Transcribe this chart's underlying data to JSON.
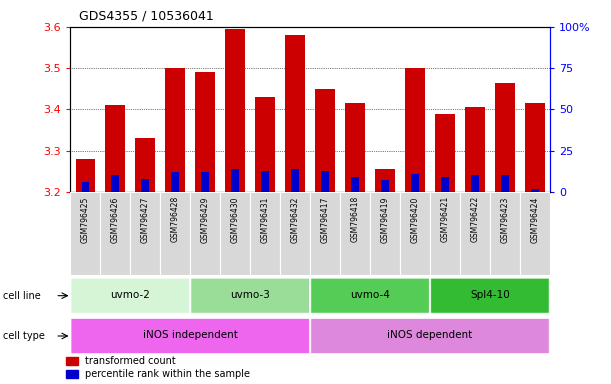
{
  "title": "GDS4355 / 10536041",
  "samples": [
    "GSM796425",
    "GSM796426",
    "GSM796427",
    "GSM796428",
    "GSM796429",
    "GSM796430",
    "GSM796431",
    "GSM796432",
    "GSM796417",
    "GSM796418",
    "GSM796419",
    "GSM796420",
    "GSM796421",
    "GSM796422",
    "GSM796423",
    "GSM796424"
  ],
  "red_values": [
    3.28,
    3.41,
    3.33,
    3.5,
    3.49,
    3.595,
    3.43,
    3.58,
    3.45,
    3.415,
    3.255,
    3.5,
    3.39,
    3.405,
    3.465,
    3.415
  ],
  "blue_percentiles": [
    6,
    10,
    8,
    12,
    12,
    14,
    13,
    14,
    13,
    9,
    7,
    11,
    9,
    10,
    10,
    2
  ],
  "cell_lines": [
    {
      "label": "uvmo-2",
      "start": 0,
      "end": 4,
      "color": "#d6f5d6"
    },
    {
      "label": "uvmo-3",
      "start": 4,
      "end": 8,
      "color": "#99dd99"
    },
    {
      "label": "uvmo-4",
      "start": 8,
      "end": 12,
      "color": "#55cc55"
    },
    {
      "label": "Spl4-10",
      "start": 12,
      "end": 16,
      "color": "#33bb33"
    }
  ],
  "cell_types": [
    {
      "label": "iNOS independent",
      "start": 0,
      "end": 8,
      "color": "#ee66ee"
    },
    {
      "label": "iNOS dependent",
      "start": 8,
      "end": 16,
      "color": "#dd88dd"
    }
  ],
  "ylim_left": [
    3.2,
    3.6
  ],
  "ylim_right": [
    0,
    100
  ],
  "yticks_left": [
    3.2,
    3.3,
    3.4,
    3.5,
    3.6
  ],
  "yticks_right": [
    0,
    25,
    50,
    75,
    100
  ],
  "ytick_labels_right": [
    "0",
    "25",
    "50",
    "75",
    "100%"
  ],
  "base_value": 3.2,
  "bar_width": 0.65,
  "blue_bar_width": 0.25,
  "red_color": "#cc0000",
  "blue_color": "#0000cc",
  "bg_color": "#ffffff",
  "legend_red": "transformed count",
  "legend_blue": "percentile rank within the sample",
  "sample_bg": "#cccccc"
}
